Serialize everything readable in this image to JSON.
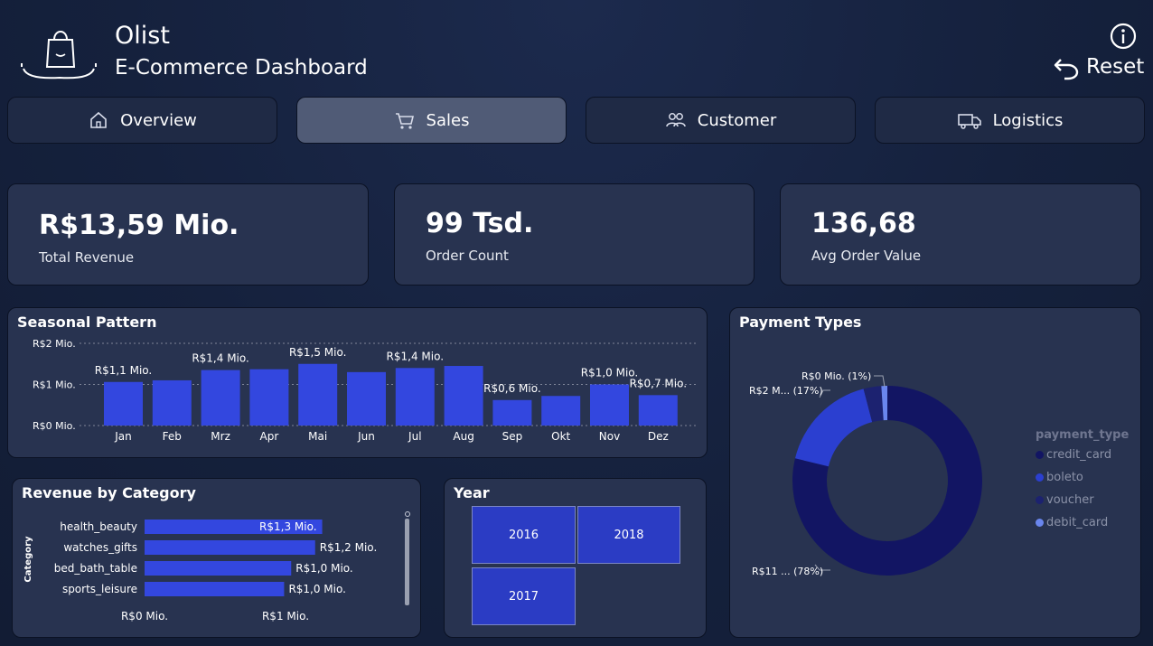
{
  "header": {
    "title": "Olist",
    "subtitle": "E-Commerce Dashboard",
    "reset_label": "Reset",
    "icons": [
      "shopping-bag-icon",
      "info-icon",
      "undo-icon"
    ]
  },
  "nav": {
    "tabs": [
      {
        "label": "Overview",
        "icon": "home-icon",
        "active": false
      },
      {
        "label": "Sales",
        "icon": "cart-icon",
        "active": true
      },
      {
        "label": "Customer",
        "icon": "users-icon",
        "active": false
      },
      {
        "label": "Logistics",
        "icon": "truck-icon",
        "active": false
      }
    ]
  },
  "kpis": [
    {
      "value": "R$13,59 Mio.",
      "label": "Total Revenue"
    },
    {
      "value": "99 Tsd.",
      "label": "Order Count"
    },
    {
      "value": "136,68",
      "label": "Avg Order Value"
    }
  ],
  "seasonal": {
    "title": "Seasonal Pattern",
    "y_ticks": [
      "R$2 Mio.",
      "R$1 Mio.",
      "R$0 Mio."
    ],
    "categories": [
      "Jan",
      "Feb",
      "Mrz",
      "Apr",
      "Mai",
      "Jun",
      "Jul",
      "Aug",
      "Sep",
      "Okt",
      "Nov",
      "Dez"
    ],
    "values": [
      1.06,
      1.1,
      1.35,
      1.37,
      1.5,
      1.3,
      1.4,
      1.45,
      0.62,
      0.72,
      1.0,
      0.74
    ],
    "labels": [
      "R$1,1 Mio.",
      "",
      "R$1,4 Mio.",
      "",
      "R$1,5 Mio.",
      "",
      "R$1,4 Mio.",
      "",
      "R$0,6 Mio.",
      "",
      "R$1,0 Mio.",
      "R$0,7 Mio."
    ],
    "ymax": 2,
    "color": "#3347df"
  },
  "category": {
    "title": "Revenue by Category",
    "axis_label": "Category",
    "categories": [
      "health_beauty",
      "watches_gifts",
      "bed_bath_table",
      "sports_leisure"
    ],
    "values": [
      1.26,
      1.21,
      1.04,
      0.99
    ],
    "labels": [
      "R$1,3 Mio.",
      "R$1,2 Mio.",
      "R$1,0 Mio.",
      "R$1,0 Mio."
    ],
    "x_ticks": [
      "R$0 Mio.",
      "R$1 Mio."
    ],
    "color": "#3347df"
  },
  "year": {
    "title": "Year",
    "options": [
      "2016",
      "2018",
      "2017"
    ]
  },
  "payment": {
    "title": "Payment Types",
    "legend_title": "payment_type",
    "slices": [
      {
        "name": "credit_card",
        "value": 78,
        "label": "R$11 ... (78%)",
        "color": "#121563"
      },
      {
        "name": "boleto",
        "value": 17,
        "label": "R$2 M... (17%)",
        "color": "#2b3fd0"
      },
      {
        "name": "voucher",
        "value": 3,
        "label": "",
        "color": "#1c2270"
      },
      {
        "name": "debit_card",
        "value": 1,
        "label": "R$0 Mio. (1%)",
        "color": "#6a86ee"
      }
    ]
  },
  "chart_data": [
    {
      "type": "bar",
      "title": "Seasonal Pattern",
      "categories": [
        "Jan",
        "Feb",
        "Mrz",
        "Apr",
        "Mai",
        "Jun",
        "Jul",
        "Aug",
        "Sep",
        "Okt",
        "Nov",
        "Dez"
      ],
      "values": [
        1.06,
        1.1,
        1.35,
        1.37,
        1.5,
        1.3,
        1.4,
        1.45,
        0.62,
        0.72,
        1.0,
        0.74
      ],
      "ylim": [
        0,
        2
      ]
    },
    {
      "type": "bar",
      "title": "Revenue by Category",
      "categories": [
        "health_beauty",
        "watches_gifts",
        "bed_bath_table",
        "sports_leisure"
      ],
      "values": [
        1.26,
        1.21,
        1.04,
        0.99
      ],
      "ylabel": "Category"
    },
    {
      "type": "pie",
      "title": "Payment Types",
      "categories": [
        "credit_card",
        "boleto",
        "voucher",
        "debit_card"
      ],
      "values": [
        78,
        17,
        3,
        1
      ]
    }
  ]
}
